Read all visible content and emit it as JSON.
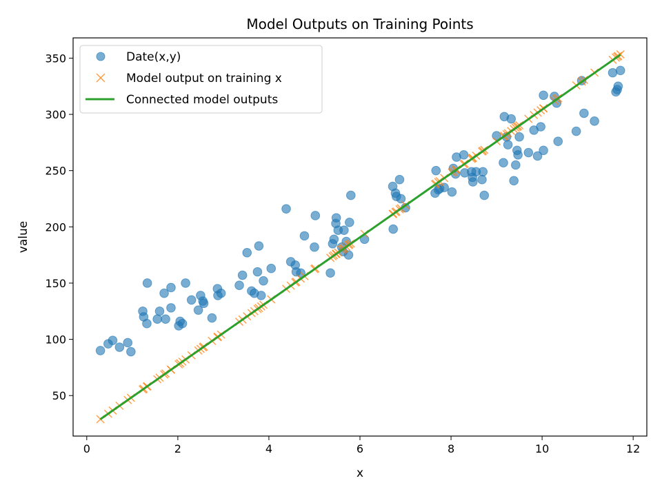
{
  "chart_data": {
    "type": "scatter",
    "title": "Model Outputs on Training Points",
    "xlabel": "x",
    "ylabel": "value",
    "xlim": [
      -0.3,
      12.3
    ],
    "ylim": [
      14,
      368
    ],
    "xticks": [
      0,
      2,
      4,
      6,
      8,
      10,
      12
    ],
    "yticks": [
      50,
      100,
      150,
      200,
      250,
      300,
      350
    ],
    "grid": false,
    "legend_position": "top-left",
    "colors": {
      "data": "#1f77b4",
      "model": "#ff7f0e",
      "line": "#2ca02c"
    },
    "series": [
      {
        "name": "Date(x,y)",
        "kind": "scatter-circle",
        "points": [
          [
            0.3,
            90
          ],
          [
            0.47,
            96
          ],
          [
            0.57,
            99
          ],
          [
            0.72,
            93
          ],
          [
            0.9,
            97
          ],
          [
            0.97,
            89
          ],
          [
            1.23,
            125
          ],
          [
            1.25,
            120
          ],
          [
            1.32,
            114
          ],
          [
            1.33,
            150
          ],
          [
            1.55,
            118
          ],
          [
            1.6,
            125
          ],
          [
            1.7,
            141
          ],
          [
            1.73,
            118
          ],
          [
            1.85,
            146
          ],
          [
            1.85,
            128
          ],
          [
            2.02,
            112
          ],
          [
            2.05,
            116
          ],
          [
            2.1,
            114
          ],
          [
            2.17,
            150
          ],
          [
            2.3,
            135
          ],
          [
            2.45,
            126
          ],
          [
            2.5,
            139
          ],
          [
            2.55,
            134
          ],
          [
            2.57,
            132
          ],
          [
            2.75,
            119
          ],
          [
            2.87,
            145
          ],
          [
            2.88,
            139
          ],
          [
            2.95,
            141
          ],
          [
            3.35,
            148
          ],
          [
            3.42,
            157
          ],
          [
            3.52,
            177
          ],
          [
            3.62,
            143
          ],
          [
            3.68,
            141
          ],
          [
            3.75,
            160
          ],
          [
            3.78,
            183
          ],
          [
            3.83,
            139
          ],
          [
            3.88,
            152
          ],
          [
            4.05,
            163
          ],
          [
            4.38,
            216
          ],
          [
            4.48,
            169
          ],
          [
            4.58,
            166
          ],
          [
            4.6,
            160
          ],
          [
            4.7,
            159
          ],
          [
            4.78,
            192
          ],
          [
            5.0,
            182
          ],
          [
            5.02,
            210
          ],
          [
            5.35,
            159
          ],
          [
            5.4,
            185
          ],
          [
            5.43,
            189
          ],
          [
            5.47,
            203
          ],
          [
            5.48,
            208
          ],
          [
            5.52,
            197
          ],
          [
            5.6,
            182
          ],
          [
            5.63,
            178
          ],
          [
            5.65,
            197
          ],
          [
            5.7,
            187
          ],
          [
            5.75,
            175
          ],
          [
            5.77,
            204
          ],
          [
            5.8,
            228
          ],
          [
            6.1,
            189
          ],
          [
            6.72,
            236
          ],
          [
            6.73,
            198
          ],
          [
            6.78,
            230
          ],
          [
            6.8,
            227
          ],
          [
            6.87,
            242
          ],
          [
            6.9,
            225
          ],
          [
            7.0,
            217
          ],
          [
            7.65,
            230
          ],
          [
            7.67,
            250
          ],
          [
            7.72,
            233
          ],
          [
            7.75,
            234
          ],
          [
            7.85,
            235
          ],
          [
            8.02,
            231
          ],
          [
            8.05,
            252
          ],
          [
            8.1,
            247
          ],
          [
            8.12,
            262
          ],
          [
            8.28,
            264
          ],
          [
            8.3,
            248
          ],
          [
            8.45,
            249
          ],
          [
            8.47,
            244
          ],
          [
            8.48,
            240
          ],
          [
            8.55,
            249
          ],
          [
            8.68,
            242
          ],
          [
            8.7,
            249
          ],
          [
            8.73,
            228
          ],
          [
            9.0,
            281
          ],
          [
            9.15,
            257
          ],
          [
            9.17,
            298
          ],
          [
            9.22,
            280
          ],
          [
            9.25,
            273
          ],
          [
            9.32,
            296
          ],
          [
            9.38,
            241
          ],
          [
            9.42,
            255
          ],
          [
            9.45,
            268
          ],
          [
            9.47,
            264
          ],
          [
            9.5,
            280
          ],
          [
            9.7,
            266
          ],
          [
            9.82,
            286
          ],
          [
            9.9,
            263
          ],
          [
            9.97,
            289
          ],
          [
            10.03,
            268
          ],
          [
            10.03,
            317
          ],
          [
            10.27,
            316
          ],
          [
            10.32,
            310
          ],
          [
            10.35,
            276
          ],
          [
            10.75,
            285
          ],
          [
            10.87,
            330
          ],
          [
            10.92,
            301
          ],
          [
            11.15,
            294
          ],
          [
            11.55,
            337
          ],
          [
            11.62,
            320
          ],
          [
            11.65,
            322
          ],
          [
            11.67,
            325
          ],
          [
            11.72,
            339
          ]
        ]
      },
      {
        "name": "Model output on training x",
        "kind": "scatter-x",
        "x": [
          0.3,
          0.47,
          0.57,
          0.72,
          0.9,
          0.97,
          1.23,
          1.25,
          1.32,
          1.33,
          1.55,
          1.6,
          1.7,
          1.73,
          1.85,
          1.85,
          2.02,
          2.05,
          2.1,
          2.17,
          2.3,
          2.45,
          2.5,
          2.55,
          2.57,
          2.75,
          2.87,
          2.88,
          2.95,
          3.35,
          3.42,
          3.52,
          3.62,
          3.68,
          3.75,
          3.78,
          3.83,
          3.88,
          4.05,
          4.38,
          4.48,
          4.58,
          4.6,
          4.7,
          4.78,
          5.0,
          5.02,
          5.35,
          5.4,
          5.43,
          5.47,
          5.48,
          5.52,
          5.6,
          5.63,
          5.65,
          5.7,
          5.75,
          5.77,
          5.8,
          6.1,
          6.72,
          6.73,
          6.78,
          6.8,
          6.87,
          6.9,
          7.0,
          7.65,
          7.67,
          7.72,
          7.75,
          7.85,
          8.02,
          8.05,
          8.1,
          8.12,
          8.28,
          8.3,
          8.45,
          8.47,
          8.48,
          8.55,
          8.68,
          8.7,
          8.73,
          9.0,
          9.15,
          9.17,
          9.22,
          9.25,
          9.32,
          9.38,
          9.42,
          9.45,
          9.47,
          9.5,
          9.7,
          9.82,
          9.9,
          9.97,
          10.03,
          10.03,
          10.27,
          10.32,
          10.35,
          10.75,
          10.87,
          10.92,
          11.15,
          11.55,
          11.62,
          11.65,
          11.67,
          11.72
        ],
        "model": {
          "slope": 28.4,
          "intercept": 20.5
        }
      },
      {
        "name": "Connected model outputs",
        "kind": "line",
        "points": [
          [
            0.3,
            29
          ],
          [
            11.72,
            353
          ]
        ]
      }
    ]
  }
}
